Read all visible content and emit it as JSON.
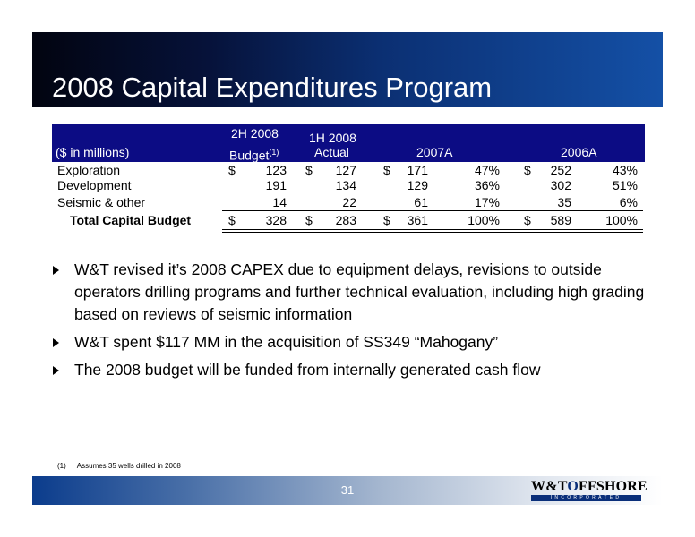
{
  "slide": {
    "title": "2008 Capital  Expenditures Program",
    "page_number": "31"
  },
  "table": {
    "header": {
      "units": "($ in millions)",
      "col_2h_line1": "2H 2008",
      "col_2h_line2": "Budget",
      "col_2h_sup": "(1)",
      "col_1h_line1": "1H 2008",
      "col_1h_line2": "Actual",
      "col_2007": "2007A",
      "col_2006": "2006A"
    },
    "rows": [
      {
        "label": "Exploration",
        "d1": "$",
        "v1": "123",
        "d2": "$",
        "v2": "127",
        "d3": "$",
        "v3": "171",
        "p3": "47%",
        "d4": "$",
        "v4": "252",
        "p4": "43%"
      },
      {
        "label": "Development",
        "d1": "",
        "v1": "191",
        "d2": "",
        "v2": "134",
        "d3": "",
        "v3": "129",
        "p3": "36%",
        "d4": "",
        "v4": "302",
        "p4": "51%"
      },
      {
        "label": "Seismic & other",
        "d1": "",
        "v1": "14",
        "d2": "",
        "v2": "22",
        "d3": "",
        "v3": "61",
        "p3": "17%",
        "d4": "",
        "v4": "35",
        "p4": "6%"
      }
    ],
    "total": {
      "label": "Total Capital Budget",
      "d1": "$",
      "v1": "328",
      "d2": "$",
      "v2": "283",
      "d3": "$",
      "v3": "361",
      "p3": "100%",
      "d4": "$",
      "v4": "589",
      "p4": "100%"
    }
  },
  "bullets": [
    "W&T revised it’s 2008 CAPEX due to equipment delays, revisions to outside operators drilling programs and further technical evaluation, including high grading based on reviews of seismic information",
    "W&T spent $117 MM in the acquisition of SS349 “Mahogany”",
    "The 2008 budget will be funded from internally generated cash flow"
  ],
  "footnote": {
    "marker": "(1)",
    "text": "Assumes 35 wells drilled in 2008"
  },
  "logo": {
    "name_left": "W&T",
    "name_o": "O",
    "name_right": "FFSHORE",
    "tagline": "INCORPORATED"
  },
  "colors": {
    "title_band": "#0b2f72",
    "table_header": "#0c0c84",
    "logo_blue": "#0a2f7a"
  }
}
